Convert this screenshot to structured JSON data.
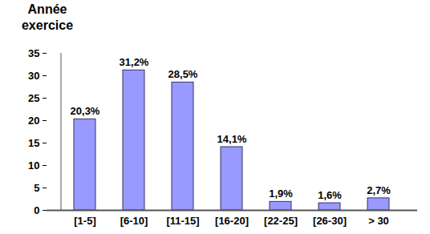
{
  "chart_data": {
    "type": "bar",
    "y_label": "Année exercice",
    "categories": [
      "[1-5]",
      "[6-10]",
      "[11-15]",
      "[16-20]",
      "[22-25]",
      "[26-30]",
      "> 30"
    ],
    "values": [
      20.3,
      31.2,
      28.5,
      14.1,
      1.9,
      1.6,
      2.7
    ],
    "value_labels": [
      "20,3%",
      "31,2%",
      "28,5%",
      "14,1%",
      "1,9%",
      "1,6%",
      "2,7%"
    ],
    "data_labels": true,
    "color": "#9999ff",
    "ylim": [
      0,
      35
    ],
    "yticks": [
      0,
      5,
      10,
      15,
      20,
      25,
      30,
      35
    ],
    "grid": false
  }
}
